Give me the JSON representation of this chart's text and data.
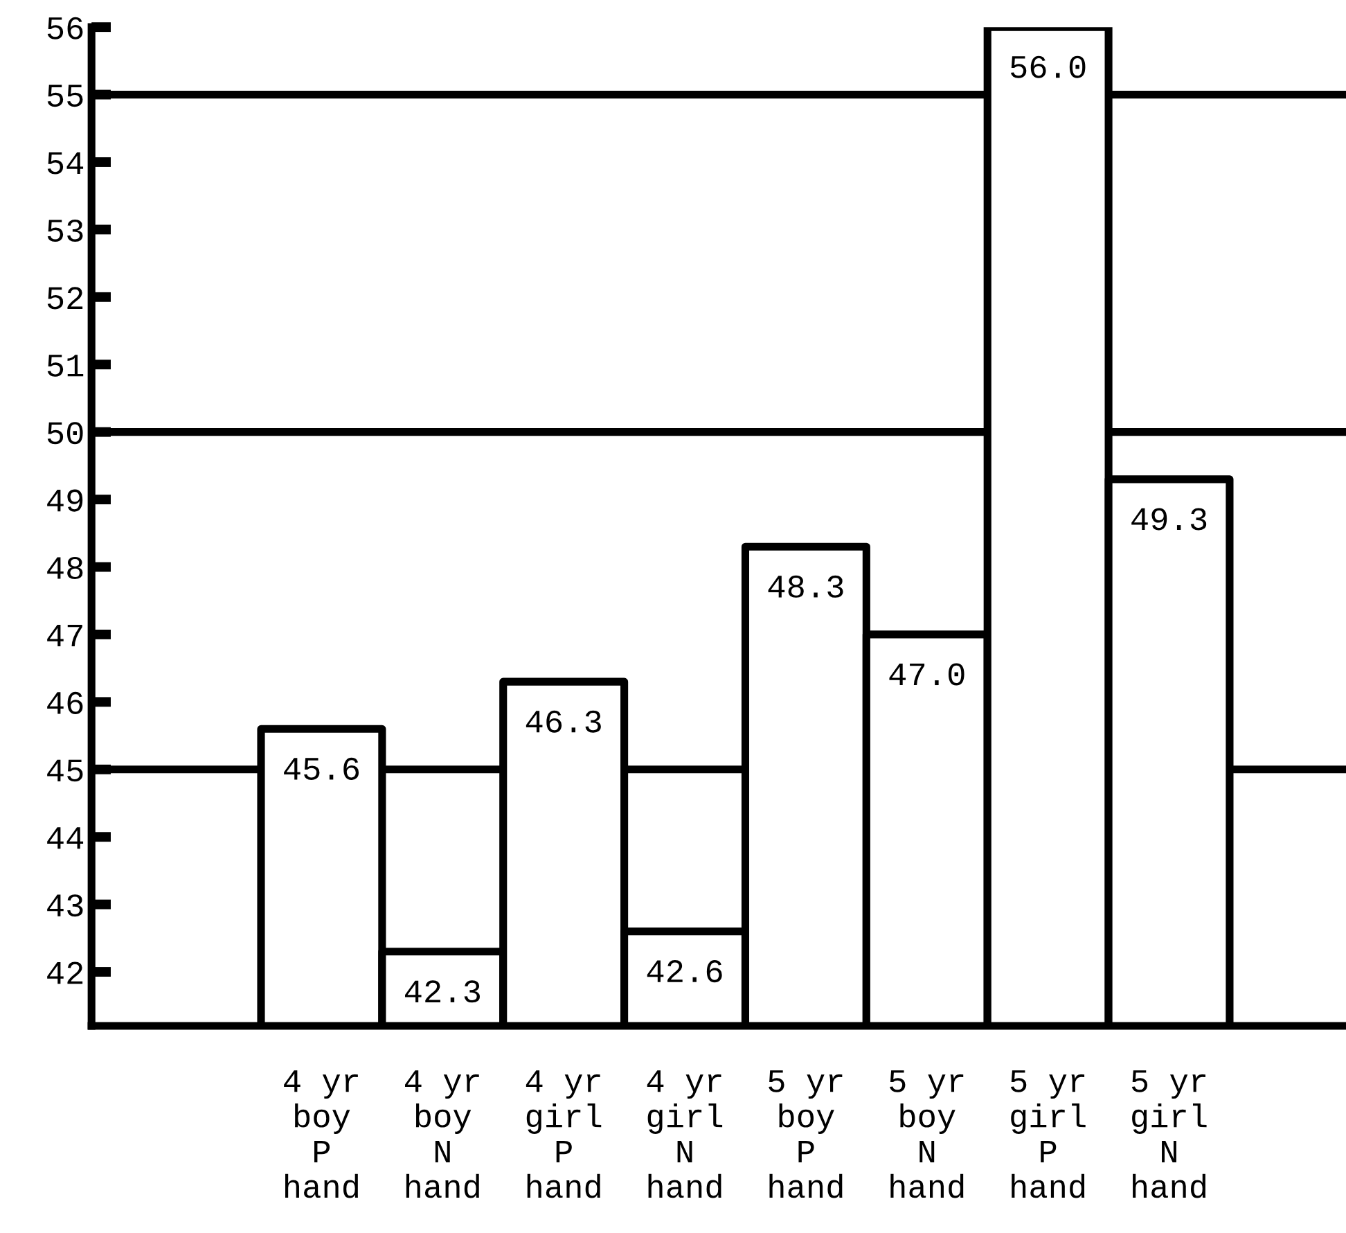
{
  "chart_data": {
    "type": "bar",
    "categories": [
      "4 yr\nboy\nP\nhand",
      "4 yr\nboy\nN\nhand",
      "4 yr\ngirl\nP\nhand",
      "4 yr\ngirl\nN\nhand",
      "5 yr\nboy\nP\nhand",
      "5 yr\nboy\nN\nhand",
      "5 yr\ngirl\nP\nhand",
      "5 yr\ngirl\nN\nhand"
    ],
    "values": [
      45.6,
      42.3,
      46.3,
      42.6,
      48.3,
      47.0,
      56.0,
      49.3
    ],
    "value_labels": [
      "45.6",
      "42.3",
      "46.3",
      "42.6",
      "48.3",
      "47.0",
      "56.0",
      "49.3"
    ],
    "color": "#ffffff",
    "ylim": [
      41.2,
      56
    ],
    "yticks": [
      42,
      43,
      44,
      45,
      46,
      47,
      48,
      49,
      50,
      51,
      52,
      53,
      54,
      55,
      56
    ],
    "ref_lines": [
      {
        "axis": "y",
        "value": 45
      },
      {
        "axis": "y",
        "value": 50
      },
      {
        "axis": "y",
        "value": 55
      }
    ],
    "grid": false,
    "legend": false
  }
}
